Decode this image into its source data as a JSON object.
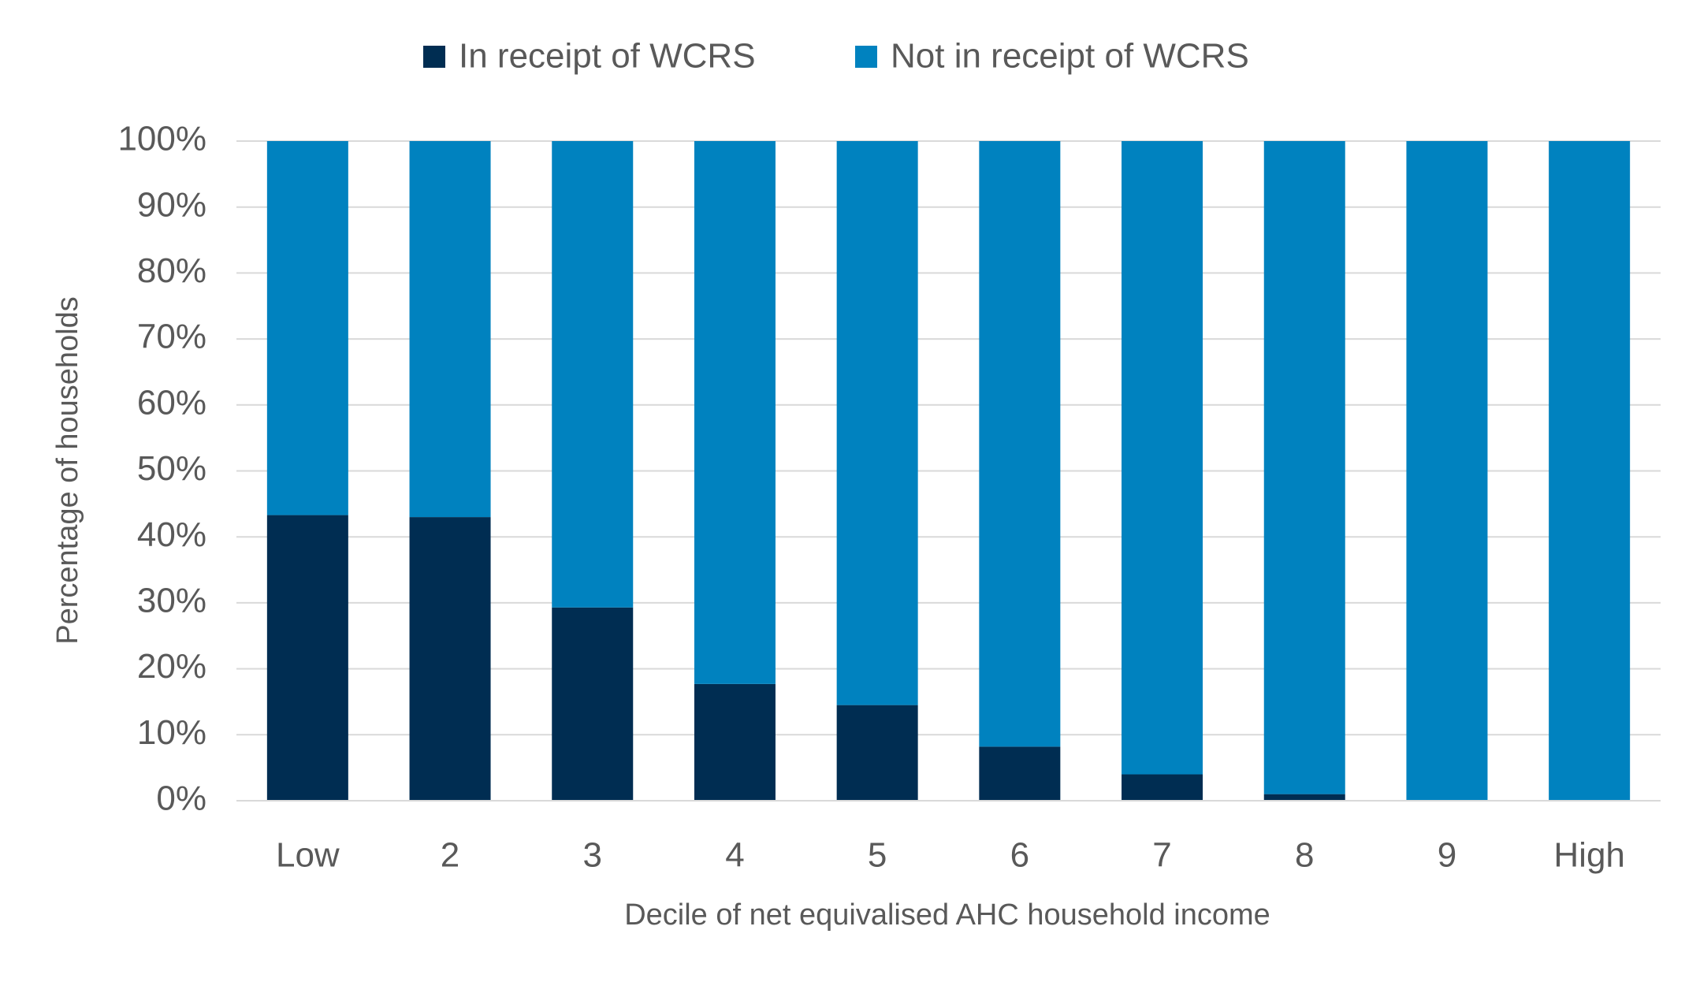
{
  "chart_data": {
    "type": "stacked_bar",
    "x_label": "Decile of net equivalised AHC household income",
    "y_label": "Percentage of households",
    "categories": [
      "Low",
      "2",
      "3",
      "4",
      "5",
      "6",
      "7",
      "8",
      "9",
      "High"
    ],
    "series": [
      {
        "name": "In receipt of WCRS",
        "color": "#002d52",
        "values": [
          43.3,
          43.0,
          29.3,
          17.7,
          14.5,
          8.2,
          4.0,
          1.0,
          0,
          0
        ]
      },
      {
        "name": "Not in receipt of WCRS",
        "color": "#0082bf",
        "values": [
          56.7,
          57.0,
          70.7,
          82.3,
          85.5,
          91.8,
          96.0,
          99.0,
          100,
          100
        ]
      }
    ],
    "ylim": [
      0,
      100
    ],
    "yticks": [
      {
        "value": 0,
        "label": "0%"
      },
      {
        "value": 10,
        "label": "10%"
      },
      {
        "value": 20,
        "label": "20%"
      },
      {
        "value": 30,
        "label": "30%"
      },
      {
        "value": 40,
        "label": "40%"
      },
      {
        "value": 50,
        "label": "50%"
      },
      {
        "value": 60,
        "label": "60%"
      },
      {
        "value": 70,
        "label": "70%"
      },
      {
        "value": 80,
        "label": "80%"
      },
      {
        "value": 90,
        "label": "90%"
      },
      {
        "value": 100,
        "label": "100%"
      }
    ],
    "grid": true,
    "legend": "top"
  }
}
